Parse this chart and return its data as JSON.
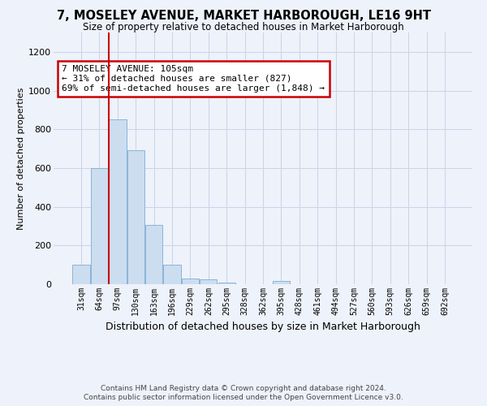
{
  "title": "7, MOSELEY AVENUE, MARKET HARBOROUGH, LE16 9HT",
  "subtitle": "Size of property relative to detached houses in Market Harborough",
  "xlabel": "Distribution of detached houses by size in Market Harborough",
  "ylabel": "Number of detached properties",
  "footer_line1": "Contains HM Land Registry data © Crown copyright and database right 2024.",
  "footer_line2": "Contains public sector information licensed under the Open Government Licence v3.0.",
  "bar_color": "#ccddf0",
  "bar_edge_color": "#8ab4d8",
  "vline_color": "#cc0000",
  "vline_x": 1.5,
  "annotation_line1": "7 MOSELEY AVENUE: 105sqm",
  "annotation_line2": "← 31% of detached houses are smaller (827)",
  "annotation_line3": "69% of semi-detached houses are larger (1,848) →",
  "annotation_box_facecolor": "#ffffff",
  "annotation_box_edgecolor": "#cc0000",
  "bins": [
    "31sqm",
    "64sqm",
    "97sqm",
    "130sqm",
    "163sqm",
    "196sqm",
    "229sqm",
    "262sqm",
    "295sqm",
    "328sqm",
    "362sqm",
    "395sqm",
    "428sqm",
    "461sqm",
    "494sqm",
    "527sqm",
    "560sqm",
    "593sqm",
    "626sqm",
    "659sqm",
    "692sqm"
  ],
  "values": [
    100,
    600,
    850,
    690,
    305,
    100,
    30,
    25,
    10,
    0,
    0,
    15,
    0,
    0,
    0,
    0,
    0,
    0,
    0,
    0,
    0
  ],
  "ylim": [
    0,
    1300
  ],
  "yticks": [
    0,
    200,
    400,
    600,
    800,
    1000,
    1200
  ],
  "grid_color": "#c8d4e8",
  "bg_color": "#eef2fa",
  "title_fontsize": 10.5,
  "subtitle_fontsize": 8.5,
  "ylabel_fontsize": 8,
  "xlabel_fontsize": 9,
  "tick_fontsize": 7,
  "ytick_fontsize": 8,
  "footer_fontsize": 6.5,
  "annot_fontsize": 8
}
